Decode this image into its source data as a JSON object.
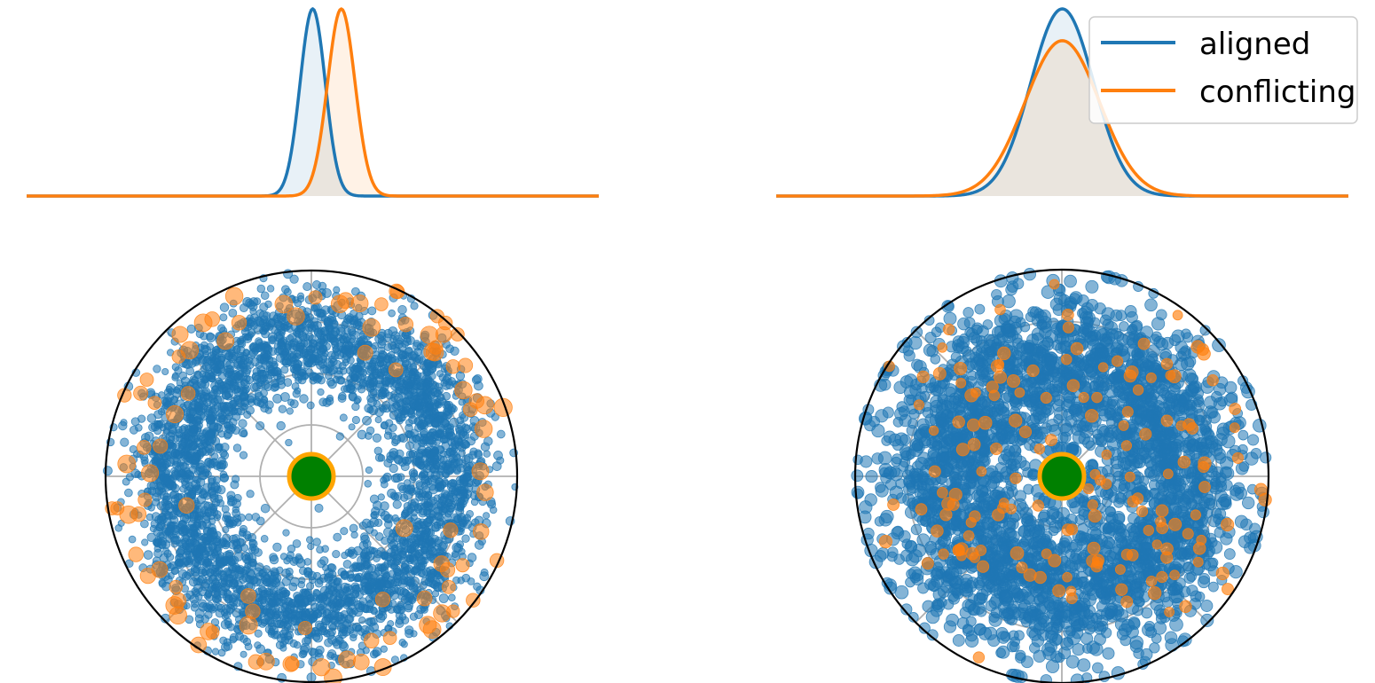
{
  "colors": {
    "aligned": "#1f77b4",
    "conflicting": "#ff7f0e",
    "origin_fill": "#008000",
    "origin_edge": "#ffa500",
    "polar_grid": "#b0b0b0",
    "polar_frame": "#000000"
  },
  "legend": {
    "placement": "top-right",
    "items": [
      {
        "key": "aligned",
        "label": "aligned"
      },
      {
        "key": "conflicting",
        "label": "conflicting"
      }
    ]
  },
  "chart_data": [
    {
      "type": "line",
      "panel": "top-left",
      "x_range": [
        -5,
        5
      ],
      "series": [
        {
          "name": "aligned",
          "kind": "gaussian-density",
          "mean": 0.0,
          "std": 0.22,
          "peak": 1.0
        },
        {
          "name": "conflicting",
          "kind": "gaussian-density",
          "mean": 0.5,
          "std": 0.24,
          "peak": 1.0
        }
      ],
      "filled": true,
      "axes_visible": false
    },
    {
      "type": "line",
      "panel": "top-right",
      "x_range": [
        -5,
        5
      ],
      "series": [
        {
          "name": "aligned",
          "kind": "gaussian-density",
          "mean": 0.0,
          "std": 0.55,
          "peak": 1.0
        },
        {
          "name": "conflicting",
          "kind": "gaussian-density",
          "mean": 0.0,
          "std": 0.65,
          "peak": 0.83
        }
      ],
      "filled": true,
      "axes_visible": false
    },
    {
      "type": "scatter",
      "panel": "bottom-left",
      "projection": "polar",
      "r_max": 4.0,
      "r_gridlines": [
        1,
        2,
        3
      ],
      "theta_gridlines_deg": [
        0,
        45,
        90,
        135,
        180,
        225,
        270,
        315
      ],
      "tick_labels_visible": false,
      "series": [
        {
          "name": "aligned",
          "count": 3800,
          "r_distribution": "ring",
          "r_mean": 2.65,
          "r_spread": 0.52,
          "marker_size": "small",
          "alpha": 0.55
        },
        {
          "name": "conflicting",
          "count": 95,
          "r_distribution": "outer-ring",
          "r_mean": 3.35,
          "r_spread": 0.38,
          "marker_size": "large",
          "alpha": 0.55
        }
      ],
      "origin_marker": {
        "r": 0,
        "label": "origin"
      }
    },
    {
      "type": "scatter",
      "panel": "bottom-right",
      "projection": "polar",
      "r_max": 4.0,
      "r_gridlines": [
        1,
        2,
        3
      ],
      "theta_gridlines_deg": [
        0,
        45,
        90,
        135,
        180,
        225,
        270,
        315
      ],
      "tick_labels_visible": false,
      "series": [
        {
          "name": "aligned",
          "count": 3000,
          "r_distribution": "ring",
          "r_mean": 2.35,
          "r_spread": 0.75,
          "marker_size": "medium",
          "alpha": 0.55
        },
        {
          "name": "conflicting",
          "count": 160,
          "r_distribution": "ring",
          "r_mean": 2.3,
          "r_spread": 0.75,
          "marker_size": "medium",
          "alpha": 0.65
        }
      ],
      "origin_marker": {
        "r": 0,
        "label": "origin"
      }
    }
  ]
}
